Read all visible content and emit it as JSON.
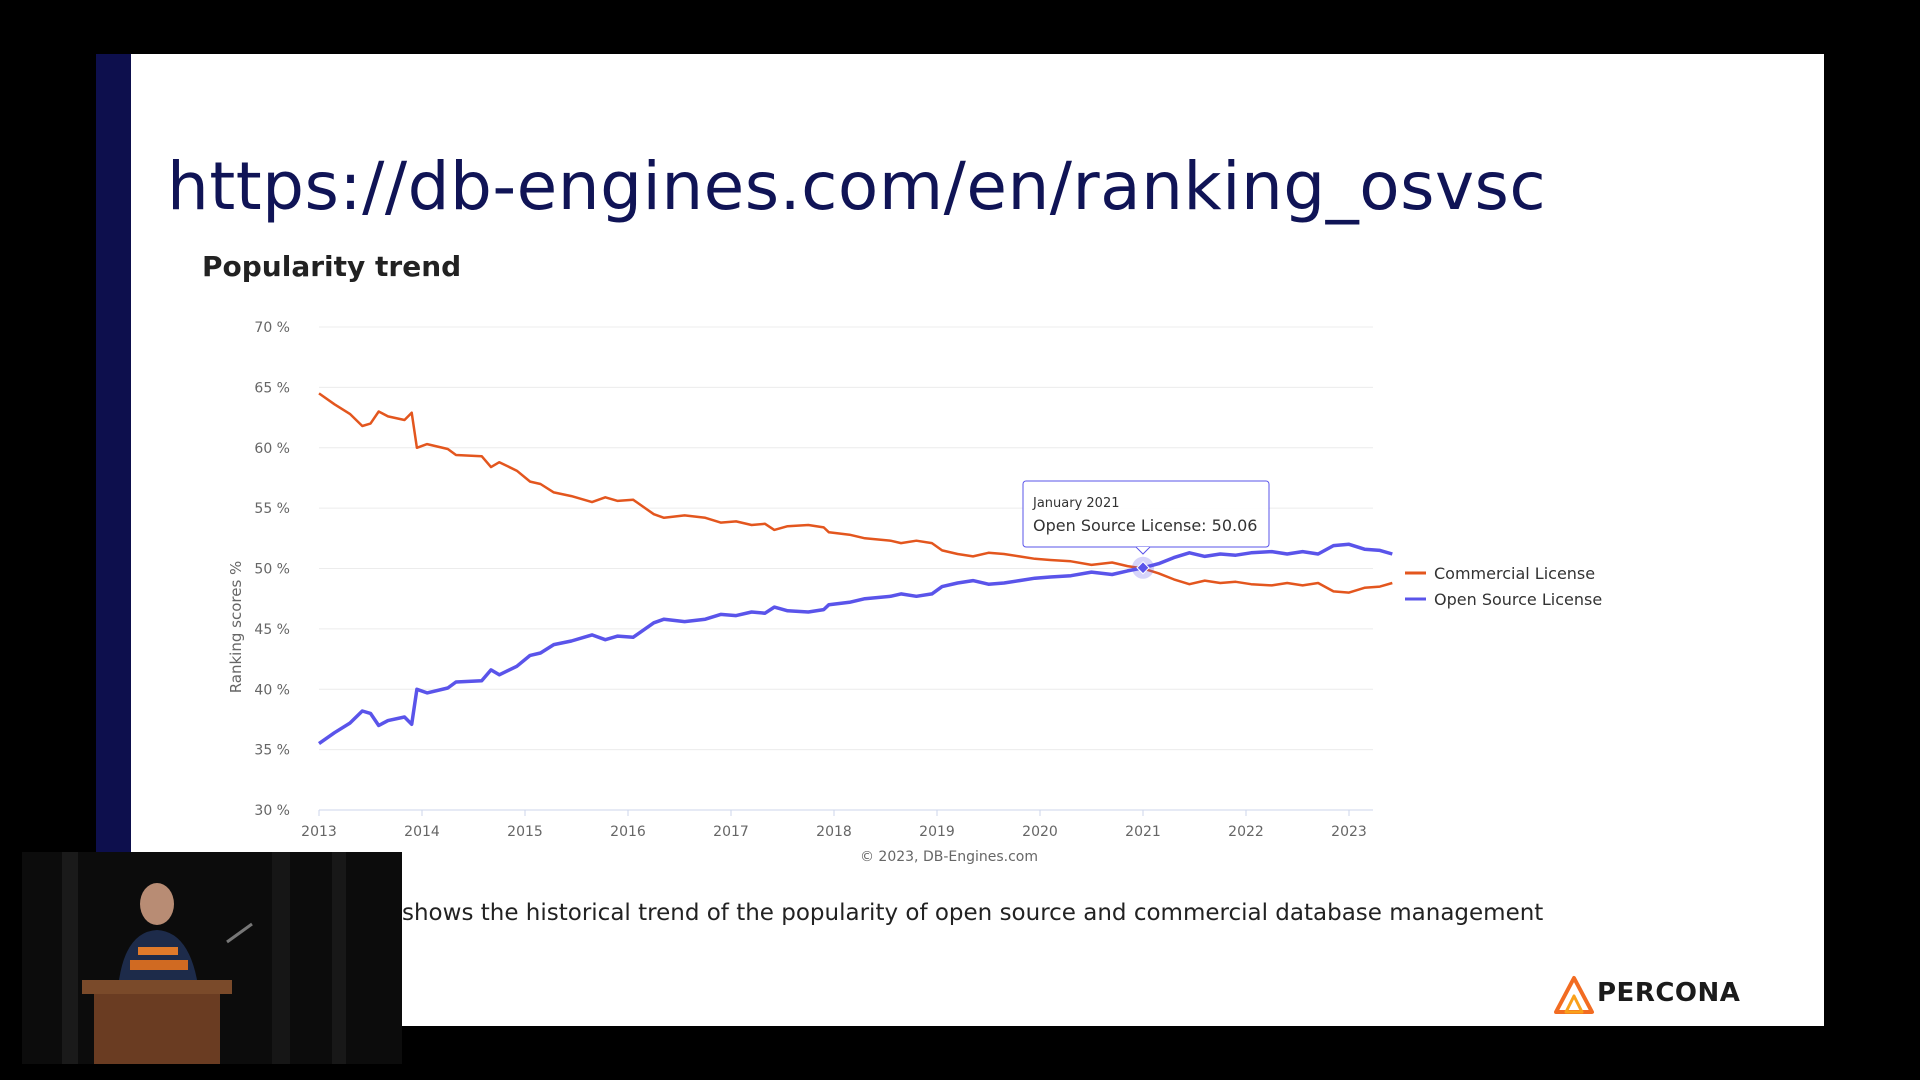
{
  "slide": {
    "url_title": "https://db-engines.com/en/ranking_osvsc",
    "chart_heading": "Popularity trend",
    "caption": "shows the historical trend of the popularity of open source and commercial database management",
    "logo_text": "PERCONA"
  },
  "colors": {
    "commercial": "#e3561e",
    "open_source": "#5a54ea",
    "slide_bar": "#0d0f4d"
  },
  "chart_data": {
    "type": "line",
    "ylabel": "Ranking scores %",
    "credit": "© 2023, DB-Engines.com",
    "ylim": [
      30,
      70
    ],
    "xlim": [
      2013,
      2023.5
    ],
    "y_ticks": [
      "30 %",
      "35 %",
      "40 %",
      "45 %",
      "50 %",
      "55 %",
      "60 %",
      "65 %",
      "70 %"
    ],
    "x_ticks": [
      "2013",
      "2014",
      "2015",
      "2016",
      "2017",
      "2018",
      "2019",
      "2020",
      "2021",
      "2022",
      "2023"
    ],
    "grid": true,
    "legend_position": "right",
    "series": [
      {
        "name": "Commercial License",
        "points": [
          [
            2013,
            64.5
          ],
          [
            2013.15,
            63.6
          ],
          [
            2013.3,
            62.8
          ],
          [
            2013.42,
            61.8
          ],
          [
            2013.5,
            62.0
          ],
          [
            2013.58,
            63.0
          ],
          [
            2013.67,
            62.6
          ],
          [
            2013.83,
            62.3
          ],
          [
            2013.9,
            62.9
          ],
          [
            2013.95,
            60.0
          ],
          [
            2014.05,
            60.3
          ],
          [
            2014.25,
            59.9
          ],
          [
            2014.33,
            59.4
          ],
          [
            2014.58,
            59.3
          ],
          [
            2014.67,
            58.4
          ],
          [
            2014.75,
            58.8
          ],
          [
            2014.92,
            58.1
          ],
          [
            2015.05,
            57.2
          ],
          [
            2015.15,
            57.0
          ],
          [
            2015.28,
            56.3
          ],
          [
            2015.45,
            56.0
          ],
          [
            2015.65,
            55.5
          ],
          [
            2015.78,
            55.9
          ],
          [
            2015.9,
            55.6
          ],
          [
            2016.05,
            55.7
          ],
          [
            2016.25,
            54.5
          ],
          [
            2016.35,
            54.2
          ],
          [
            2016.55,
            54.4
          ],
          [
            2016.75,
            54.2
          ],
          [
            2016.9,
            53.8
          ],
          [
            2017.05,
            53.9
          ],
          [
            2017.2,
            53.6
          ],
          [
            2017.33,
            53.7
          ],
          [
            2017.42,
            53.2
          ],
          [
            2017.55,
            53.5
          ],
          [
            2017.75,
            53.6
          ],
          [
            2017.9,
            53.4
          ],
          [
            2017.95,
            53.0
          ],
          [
            2018.15,
            52.8
          ],
          [
            2018.3,
            52.5
          ],
          [
            2018.55,
            52.3
          ],
          [
            2018.65,
            52.1
          ],
          [
            2018.8,
            52.3
          ],
          [
            2018.95,
            52.1
          ],
          [
            2019.05,
            51.5
          ],
          [
            2019.2,
            51.2
          ],
          [
            2019.35,
            51.0
          ],
          [
            2019.5,
            51.3
          ],
          [
            2019.65,
            51.2
          ],
          [
            2019.8,
            51.0
          ],
          [
            2019.95,
            50.8
          ],
          [
            2020.1,
            50.7
          ],
          [
            2020.3,
            50.6
          ],
          [
            2020.5,
            50.3
          ],
          [
            2020.7,
            50.5
          ],
          [
            2020.85,
            50.2
          ],
          [
            2021,
            50.0
          ],
          [
            2021.15,
            49.6
          ],
          [
            2021.3,
            49.1
          ],
          [
            2021.45,
            48.7
          ],
          [
            2021.6,
            49.0
          ],
          [
            2021.75,
            48.8
          ],
          [
            2021.9,
            48.9
          ],
          [
            2022.05,
            48.7
          ],
          [
            2022.25,
            48.6
          ],
          [
            2022.4,
            48.8
          ],
          [
            2022.55,
            48.6
          ],
          [
            2022.7,
            48.8
          ],
          [
            2022.85,
            48.1
          ],
          [
            2023,
            48.0
          ],
          [
            2023.15,
            48.4
          ],
          [
            2023.3,
            48.5
          ],
          [
            2023.42,
            48.8
          ]
        ]
      },
      {
        "name": "Open Source License",
        "points": [
          [
            2013,
            35.5
          ],
          [
            2013.15,
            36.4
          ],
          [
            2013.3,
            37.2
          ],
          [
            2013.42,
            38.2
          ],
          [
            2013.5,
            38.0
          ],
          [
            2013.58,
            37.0
          ],
          [
            2013.67,
            37.4
          ],
          [
            2013.83,
            37.7
          ],
          [
            2013.9,
            37.1
          ],
          [
            2013.95,
            40.0
          ],
          [
            2014.05,
            39.7
          ],
          [
            2014.25,
            40.1
          ],
          [
            2014.33,
            40.6
          ],
          [
            2014.58,
            40.7
          ],
          [
            2014.67,
            41.6
          ],
          [
            2014.75,
            41.2
          ],
          [
            2014.92,
            41.9
          ],
          [
            2015.05,
            42.8
          ],
          [
            2015.15,
            43.0
          ],
          [
            2015.28,
            43.7
          ],
          [
            2015.45,
            44.0
          ],
          [
            2015.65,
            44.5
          ],
          [
            2015.78,
            44.1
          ],
          [
            2015.9,
            44.4
          ],
          [
            2016.05,
            44.3
          ],
          [
            2016.25,
            45.5
          ],
          [
            2016.35,
            45.8
          ],
          [
            2016.55,
            45.6
          ],
          [
            2016.75,
            45.8
          ],
          [
            2016.9,
            46.2
          ],
          [
            2017.05,
            46.1
          ],
          [
            2017.2,
            46.4
          ],
          [
            2017.33,
            46.3
          ],
          [
            2017.42,
            46.8
          ],
          [
            2017.55,
            46.5
          ],
          [
            2017.75,
            46.4
          ],
          [
            2017.9,
            46.6
          ],
          [
            2017.95,
            47.0
          ],
          [
            2018.15,
            47.2
          ],
          [
            2018.3,
            47.5
          ],
          [
            2018.55,
            47.7
          ],
          [
            2018.65,
            47.9
          ],
          [
            2018.8,
            47.7
          ],
          [
            2018.95,
            47.9
          ],
          [
            2019.05,
            48.5
          ],
          [
            2019.2,
            48.8
          ],
          [
            2019.35,
            49.0
          ],
          [
            2019.5,
            48.7
          ],
          [
            2019.65,
            48.8
          ],
          [
            2019.8,
            49.0
          ],
          [
            2019.95,
            49.2
          ],
          [
            2020.1,
            49.3
          ],
          [
            2020.3,
            49.4
          ],
          [
            2020.5,
            49.7
          ],
          [
            2020.7,
            49.5
          ],
          [
            2020.85,
            49.8
          ],
          [
            2021,
            50.06
          ],
          [
            2021.15,
            50.4
          ],
          [
            2021.3,
            50.9
          ],
          [
            2021.45,
            51.3
          ],
          [
            2021.6,
            51.0
          ],
          [
            2021.75,
            51.2
          ],
          [
            2021.9,
            51.1
          ],
          [
            2022.05,
            51.3
          ],
          [
            2022.25,
            51.4
          ],
          [
            2022.4,
            51.2
          ],
          [
            2022.55,
            51.4
          ],
          [
            2022.7,
            51.2
          ],
          [
            2022.85,
            51.9
          ],
          [
            2023,
            52.0
          ],
          [
            2023.15,
            51.6
          ],
          [
            2023.3,
            51.5
          ],
          [
            2023.42,
            51.2
          ]
        ]
      }
    ],
    "tooltip": {
      "date": "January 2021",
      "text": "Open Source License: 50.06",
      "x": 2021,
      "y": 50.06
    }
  }
}
